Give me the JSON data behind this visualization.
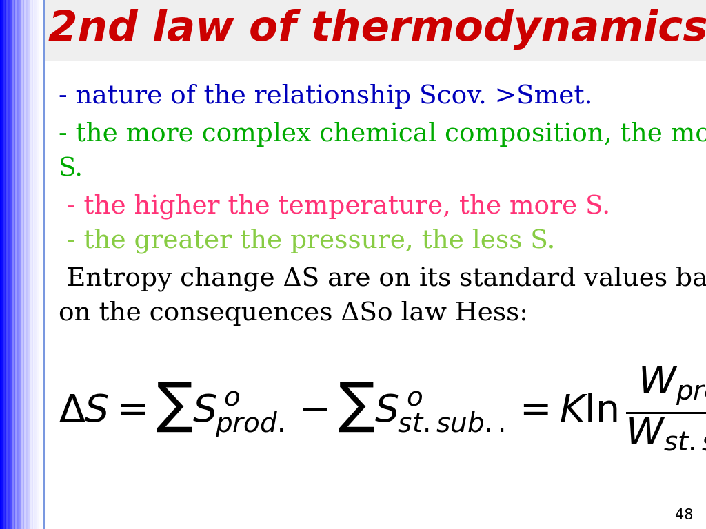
{
  "title": "2nd law of thermodynamics",
  "title_color": "#CC0000",
  "title_fontsize": 44,
  "bg_color": "#FFFFFF",
  "line1_text": "- nature of the relationship Scov. >Smet.",
  "line1_color": "#0000BB",
  "line1_fontsize": 27,
  "line2a_text": "- the more complex chemical composition, the more",
  "line2b_text": "S.",
  "line2_color": "#00AA00",
  "line2_fontsize": 27,
  "line3_text": " - the higher the temperature, the more S.",
  "line3_color": "#FF3377",
  "line3_fontsize": 27,
  "line4_text": " - the greater the pressure, the less S.",
  "line4_color": "#88CC44",
  "line4_fontsize": 27,
  "line5a_text": " Entropy change ΔS are on its standard values based",
  "line5b_text": "on the consequences ΔSo law Hess:",
  "line5_color": "#000000",
  "line5_fontsize": 27,
  "page_number": "48",
  "page_number_color": "#000000",
  "left_bar_width": 65
}
